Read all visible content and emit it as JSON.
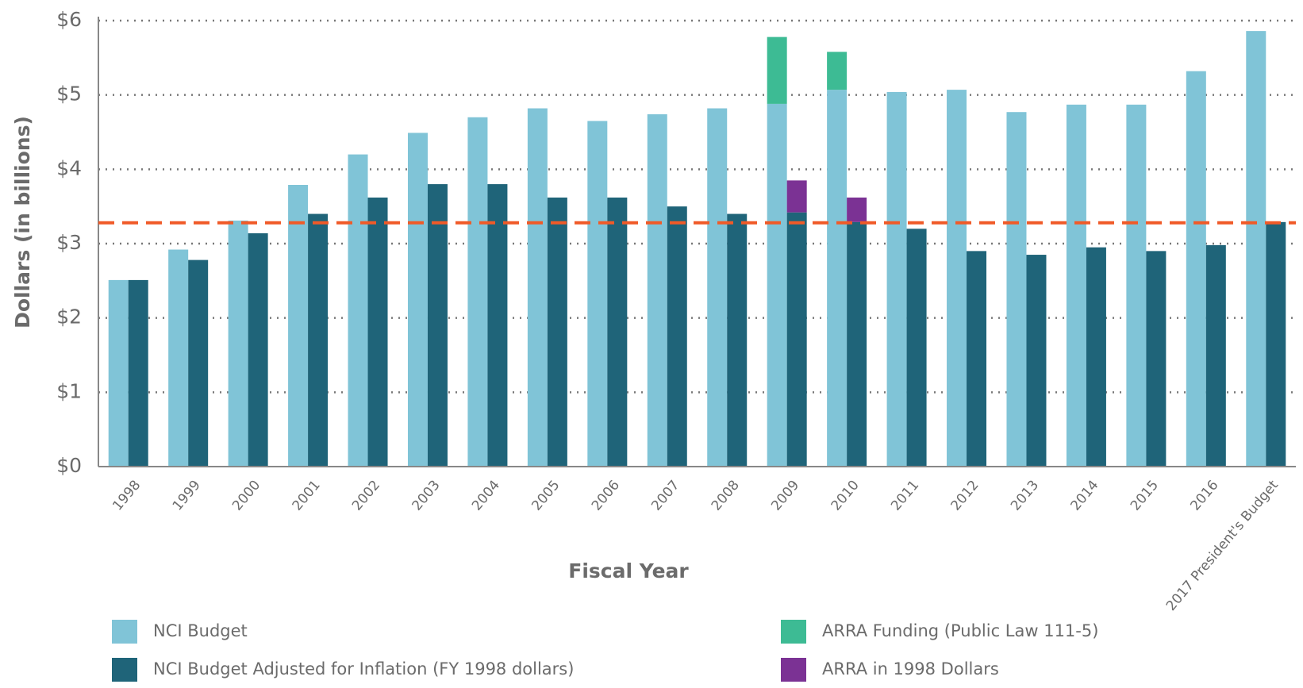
{
  "chart_data": {
    "type": "bar",
    "y_label": "Dollars (in billions)",
    "x_label": "Fiscal Year",
    "categories": [
      "1998",
      "1999",
      "2000",
      "2001",
      "2002",
      "2003",
      "2004",
      "2005",
      "2006",
      "2007",
      "2008",
      "2009",
      "2010",
      "2011",
      "2012",
      "2013",
      "2014",
      "2015",
      "2016",
      "2017 President's Budget"
    ],
    "series": [
      {
        "name": "NCI Budget",
        "color": "#80c4d7",
        "values": [
          2.51,
          2.92,
          3.31,
          3.79,
          4.2,
          4.49,
          4.7,
          4.82,
          4.65,
          4.74,
          4.82,
          4.88,
          5.07,
          5.04,
          5.07,
          4.77,
          4.87,
          4.87,
          5.32,
          5.86
        ]
      },
      {
        "name": "NCI Budget Adjusted for Inflation (FY 1998 dollars)",
        "color": "#1f6479",
        "values": [
          2.51,
          2.78,
          3.14,
          3.4,
          3.62,
          3.8,
          3.8,
          3.62,
          3.62,
          3.5,
          3.4,
          3.42,
          3.29,
          3.2,
          2.9,
          2.85,
          2.95,
          2.9,
          2.98,
          3.29
        ]
      },
      {
        "name": "ARRA Funding (Public Law 111-5)",
        "color": "#3dbb94",
        "values": [
          null,
          null,
          null,
          null,
          null,
          null,
          null,
          null,
          null,
          null,
          null,
          0.9,
          0.51,
          null,
          null,
          null,
          null,
          null,
          null,
          null
        ]
      },
      {
        "name": "ARRA in 1998 Dollars",
        "color": "#7b3294",
        "values": [
          null,
          null,
          null,
          null,
          null,
          null,
          null,
          null,
          null,
          null,
          null,
          0.43,
          0.33,
          null,
          null,
          null,
          null,
          null,
          null,
          null
        ]
      }
    ],
    "reference_line": {
      "value": 3.28,
      "color": "#f05a28"
    },
    "ylim": [
      0,
      6
    ],
    "yticks": [
      {
        "value": 0,
        "label": "$0"
      },
      {
        "value": 1,
        "label": "$1"
      },
      {
        "value": 2,
        "label": "$2"
      },
      {
        "value": 3,
        "label": "$3"
      },
      {
        "value": 4,
        "label": "$4"
      },
      {
        "value": 5,
        "label": "$5"
      },
      {
        "value": 6,
        "label": "$6"
      }
    ],
    "grid": true
  }
}
